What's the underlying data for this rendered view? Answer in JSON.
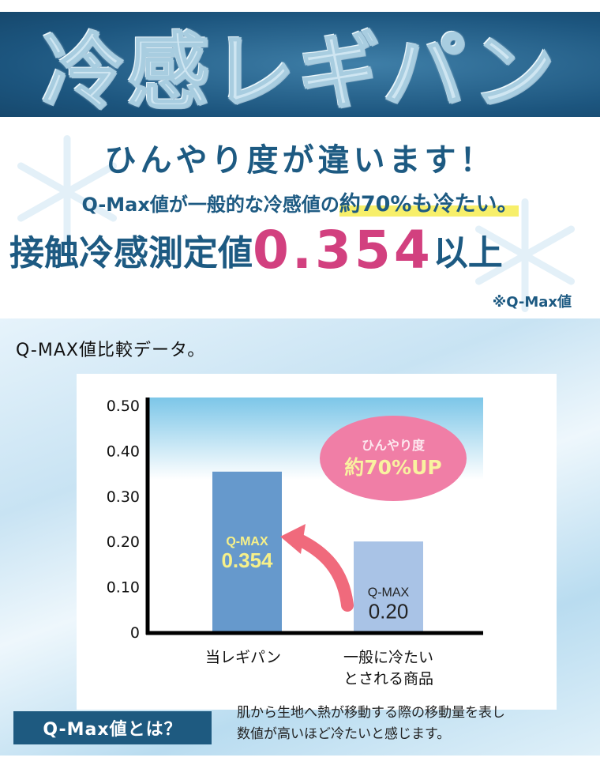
{
  "banner": {
    "title": "冷感レギパン"
  },
  "hero": {
    "headline": "ひんやり度が違います！",
    "sub_pre": "Q-Max値が一般的な冷感値の",
    "sub_highlight": "約70%も冷たい。",
    "measure_pre": "接触冷感測定値",
    "measure_value": "0.354",
    "measure_post": "以上",
    "note": "※Q-Max値"
  },
  "section": {
    "title": "Q-MAX値比較データ。"
  },
  "chart_data": {
    "type": "bar",
    "categories": [
      "当レギパン",
      "一般に冷たいとされる商品"
    ],
    "category_lines": [
      [
        "当レギパン"
      ],
      [
        "一般に冷たい",
        "とされる商品"
      ]
    ],
    "values": [
      0.354,
      0.2
    ],
    "bar_labels": [
      {
        "top": "Q-MAX",
        "value": "0.354"
      },
      {
        "top": "Q-MAX",
        "value": "0.20"
      }
    ],
    "yticks": [
      "0",
      "0.10",
      "0.20",
      "0.30",
      "0.40",
      "0.50"
    ],
    "ylim": [
      0,
      0.5
    ],
    "annotation": {
      "line1": "ひんやり度",
      "line2": "約70%UP"
    },
    "colors": {
      "bar1": "#6699cc",
      "bar2": "#a9c3e6",
      "bar1_label": "#f6f08a",
      "callout": "#f07ea6",
      "arrow": "#f06a7c"
    }
  },
  "footer": {
    "button": "Q-Max値とは？",
    "desc_line1": "肌から生地へ熱が移動する際の移動量を表し",
    "desc_line2": "数値が高いほど冷たいと感じます。"
  }
}
